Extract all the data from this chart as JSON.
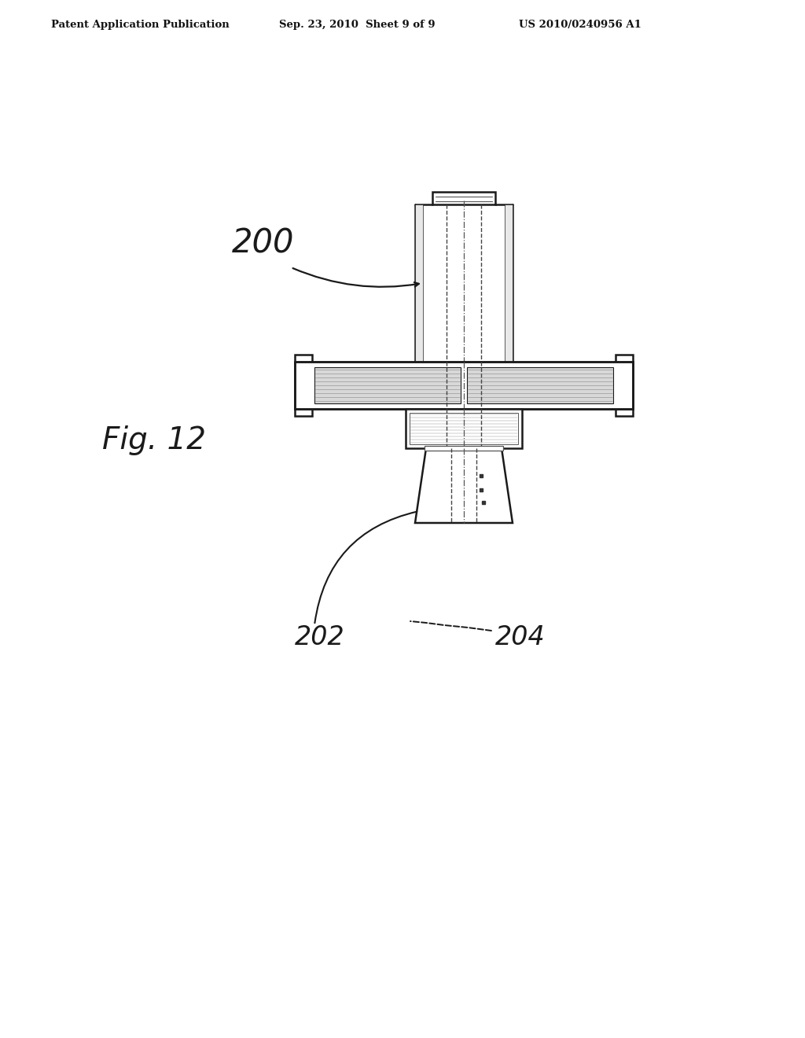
{
  "bg_color": "#ffffff",
  "header_left": "Patent Application Publication",
  "header_center": "Sep. 23, 2010  Sheet 9 of 9",
  "header_right": "US 2010/0240956 A1",
  "fig_label": "Fig. 12",
  "label_200": "200",
  "label_202": "202",
  "label_204": "204",
  "line_color": "#1a1a1a",
  "light_gray": "#cccccc",
  "mid_gray": "#aaaaaa",
  "dark_gray": "#555555"
}
